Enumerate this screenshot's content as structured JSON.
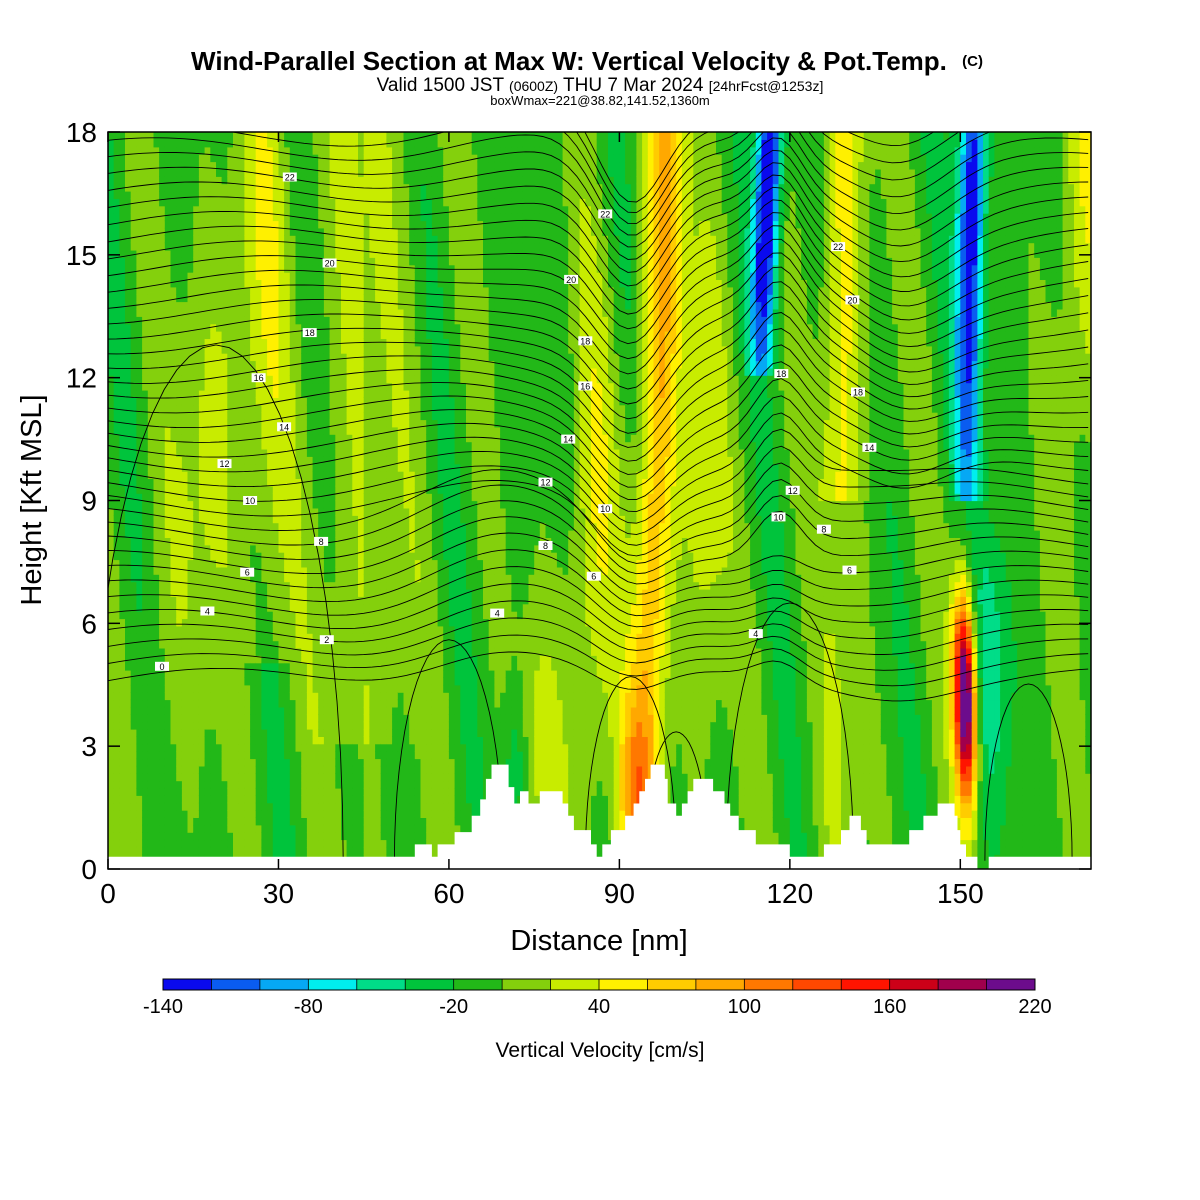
{
  "chart_data": {
    "type": "heatmap",
    "title": "Wind-Parallel Section at Max W: Vertical Velocity & Pot.Temp.",
    "title_mark": "(C)",
    "subtitle": {
      "prefix": "Valid 1500 JST",
      "utc": "(0600Z)",
      "date": "THU 7 Mar 2024",
      "forecast": "[24hrFcst@1253z]"
    },
    "subtitle2": "boxWmax=221@38.82,141.52,1360m",
    "xlabel": "Distance [nm]",
    "ylabel": "Height [Kft MSL]",
    "xlim": [
      0,
      173
    ],
    "ylim": [
      0,
      18
    ],
    "x_ticks": [
      "0",
      "30",
      "60",
      "90",
      "120",
      "150"
    ],
    "x_tick_values": [
      0,
      30,
      60,
      90,
      120,
      150
    ],
    "y_ticks": [
      "0",
      "3",
      "6",
      "9",
      "12",
      "15",
      "18"
    ],
    "y_tick_values": [
      0,
      3,
      6,
      9,
      12,
      15,
      18
    ],
    "colorbar": {
      "label": "Vertical Velocity [cm/s]",
      "min": -140,
      "max": 220,
      "step": 20,
      "tick_labels": [
        "-140",
        "-80",
        "-20",
        "40",
        "100",
        "160",
        "220"
      ],
      "tick_values": [
        -140,
        -80,
        -20,
        40,
        100,
        160,
        220
      ],
      "colors": [
        "#0a0aee",
        "#0a5cf0",
        "#06a8f4",
        "#00eeee",
        "#00dd88",
        "#00c43c",
        "#22b818",
        "#84d00c",
        "#c8ec00",
        "#fff000",
        "#ffcc00",
        "#ffa800",
        "#ff7800",
        "#ff4800",
        "#ff1400",
        "#cc0018",
        "#a0004c",
        "#6c0c8c"
      ]
    },
    "theta_contour_labels": [
      {
        "text": "22",
        "x": 32,
        "y": 16.9
      },
      {
        "text": "20",
        "x": 39,
        "y": 14.8
      },
      {
        "text": "18",
        "x": 35.5,
        "y": 13.1
      },
      {
        "text": "16",
        "x": 26.5,
        "y": 12.0
      },
      {
        "text": "14",
        "x": 31,
        "y": 10.8
      },
      {
        "text": "12",
        "x": 20.5,
        "y": 9.9
      },
      {
        "text": "10",
        "x": 25,
        "y": 9.0
      },
      {
        "text": "8",
        "x": 37.5,
        "y": 8.0
      },
      {
        "text": "6",
        "x": 24.5,
        "y": 7.25
      },
      {
        "text": "4",
        "x": 17.5,
        "y": 6.3
      },
      {
        "text": "2",
        "x": 38.5,
        "y": 5.6
      },
      {
        "text": "0",
        "x": 9.5,
        "y": 4.95
      },
      {
        "text": "22",
        "x": 87.5,
        "y": 16.0
      },
      {
        "text": "20",
        "x": 81.5,
        "y": 14.4
      },
      {
        "text": "18",
        "x": 84,
        "y": 12.9
      },
      {
        "text": "16",
        "x": 84,
        "y": 11.8
      },
      {
        "text": "14",
        "x": 81,
        "y": 10.5
      },
      {
        "text": "12",
        "x": 77,
        "y": 9.45
      },
      {
        "text": "10",
        "x": 87.5,
        "y": 8.8
      },
      {
        "text": "8",
        "x": 77,
        "y": 7.9
      },
      {
        "text": "6",
        "x": 85.5,
        "y": 7.15
      },
      {
        "text": "4",
        "x": 68.5,
        "y": 6.25
      },
      {
        "text": "4",
        "x": 114,
        "y": 5.75
      },
      {
        "text": "18",
        "x": 118.5,
        "y": 12.1
      },
      {
        "text": "22",
        "x": 128.5,
        "y": 15.2
      },
      {
        "text": "20",
        "x": 131,
        "y": 13.9
      },
      {
        "text": "18",
        "x": 132,
        "y": 11.65
      },
      {
        "text": "14",
        "x": 134,
        "y": 10.3
      },
      {
        "text": "12",
        "x": 120.5,
        "y": 9.25
      },
      {
        "text": "10",
        "x": 118,
        "y": 8.6
      },
      {
        "text": "8",
        "x": 126,
        "y": 8.3
      },
      {
        "text": "6",
        "x": 130.5,
        "y": 7.3
      }
    ],
    "terrain_profile": [
      [
        0,
        0.3
      ],
      [
        54,
        0.3
      ],
      [
        54,
        0.6
      ],
      [
        57,
        0.6
      ],
      [
        57,
        0.3
      ],
      [
        58,
        0.3
      ],
      [
        58,
        0.6
      ],
      [
        61,
        0.6
      ],
      [
        61,
        0.9
      ],
      [
        64,
        0.9
      ],
      [
        64,
        1.3
      ],
      [
        65.5,
        1.3
      ],
      [
        65.5,
        1.7
      ],
      [
        66.5,
        1.7
      ],
      [
        66.5,
        2.2
      ],
      [
        67.5,
        2.2
      ],
      [
        67.5,
        2.55
      ],
      [
        70.5,
        2.55
      ],
      [
        70.5,
        2.0
      ],
      [
        71.5,
        2.0
      ],
      [
        71.5,
        1.6
      ],
      [
        72.5,
        1.6
      ],
      [
        72.5,
        1.9
      ],
      [
        74,
        1.9
      ],
      [
        74,
        1.6
      ],
      [
        76,
        1.6
      ],
      [
        76,
        1.9
      ],
      [
        80,
        1.9
      ],
      [
        80,
        1.6
      ],
      [
        81,
        1.6
      ],
      [
        81,
        1.3
      ],
      [
        82,
        1.3
      ],
      [
        82,
        0.95
      ],
      [
        85,
        0.95
      ],
      [
        85,
        0.6
      ],
      [
        86,
        0.6
      ],
      [
        86,
        0.3
      ],
      [
        87,
        0.3
      ],
      [
        87,
        0.6
      ],
      [
        88.5,
        0.6
      ],
      [
        88.5,
        0.95
      ],
      [
        91,
        0.95
      ],
      [
        91,
        1.3
      ],
      [
        92.5,
        1.3
      ],
      [
        92.5,
        1.6
      ],
      [
        93.5,
        1.6
      ],
      [
        93.5,
        1.9
      ],
      [
        94.5,
        1.9
      ],
      [
        94.5,
        2.2
      ],
      [
        95.5,
        2.2
      ],
      [
        95.5,
        2.55
      ],
      [
        98,
        2.55
      ],
      [
        98,
        2.2
      ],
      [
        98.5,
        2.2
      ],
      [
        98.5,
        1.6
      ],
      [
        100,
        1.6
      ],
      [
        100,
        1.3
      ],
      [
        101,
        1.3
      ],
      [
        101,
        1.6
      ],
      [
        102,
        1.6
      ],
      [
        102,
        1.9
      ],
      [
        103,
        1.9
      ],
      [
        103,
        2.2
      ],
      [
        106.5,
        2.2
      ],
      [
        106.5,
        1.9
      ],
      [
        108.5,
        1.9
      ],
      [
        108.5,
        1.6
      ],
      [
        109.5,
        1.6
      ],
      [
        109.5,
        1.3
      ],
      [
        111,
        1.3
      ],
      [
        111,
        0.95
      ],
      [
        114,
        0.95
      ],
      [
        114,
        0.6
      ],
      [
        120,
        0.6
      ],
      [
        120,
        0.3
      ],
      [
        126,
        0.3
      ],
      [
        126,
        0.6
      ],
      [
        129,
        0.6
      ],
      [
        129,
        0.95
      ],
      [
        130.5,
        0.95
      ],
      [
        130.5,
        1.3
      ],
      [
        132.5,
        1.3
      ],
      [
        132.5,
        0.95
      ],
      [
        133.5,
        0.95
      ],
      [
        133.5,
        0.6
      ],
      [
        141,
        0.6
      ],
      [
        141,
        0.95
      ],
      [
        143.5,
        0.95
      ],
      [
        143.5,
        1.3
      ],
      [
        146,
        1.3
      ],
      [
        146,
        1.6
      ],
      [
        149,
        1.6
      ],
      [
        149,
        1.3
      ],
      [
        149.5,
        1.3
      ],
      [
        149.5,
        0.95
      ],
      [
        150,
        0.95
      ],
      [
        150,
        0.6
      ],
      [
        151,
        0.6
      ],
      [
        151,
        0.3
      ],
      [
        153,
        0.3
      ],
      [
        153,
        0.0
      ],
      [
        155,
        0.0
      ],
      [
        155,
        0.3
      ],
      [
        173,
        0.3
      ]
    ]
  }
}
